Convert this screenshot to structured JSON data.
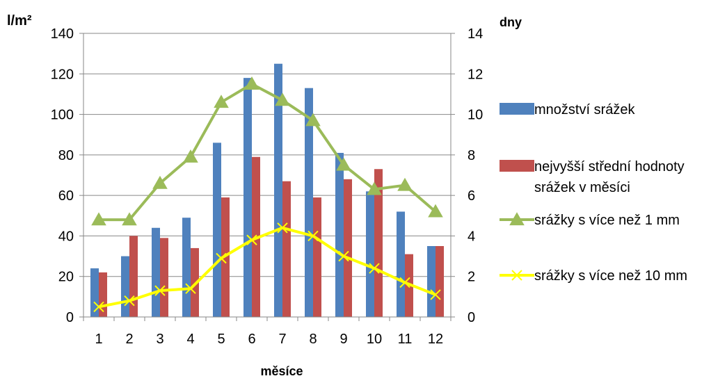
{
  "chart_data": {
    "type": "bar",
    "title": "",
    "xlabel": "měsíce",
    "ylabel_left": "l/m²",
    "ylabel_right": "dny",
    "categories": [
      "1",
      "2",
      "3",
      "4",
      "5",
      "6",
      "7",
      "8",
      "9",
      "10",
      "11",
      "12"
    ],
    "ylim_left": [
      0,
      140
    ],
    "ylim_right": [
      0,
      14
    ],
    "yticks_left": [
      "0",
      "20",
      "40",
      "60",
      "80",
      "100",
      "120",
      "140"
    ],
    "yticks_right": [
      "0",
      "2",
      "4",
      "6",
      "8",
      "10",
      "12",
      "14"
    ],
    "grid": true,
    "legend_position": "right",
    "series": [
      {
        "name": "množství srážek",
        "kind": "bar",
        "axis": "left",
        "color": "#4f81bd",
        "values": [
          24,
          30,
          44,
          49,
          86,
          118,
          125,
          113,
          81,
          62,
          52,
          35
        ]
      },
      {
        "name": "nejvyšší střední hodnoty srážek v měsíci",
        "kind": "bar",
        "axis": "left",
        "color": "#c0504d",
        "values": [
          22,
          40,
          39,
          34,
          59,
          79,
          67,
          59,
          68,
          73,
          31,
          35
        ]
      },
      {
        "name": "srážky s více než 1 mm",
        "kind": "line",
        "axis": "right",
        "color": "#9bbb59",
        "marker": "triangle",
        "values": [
          4.8,
          4.8,
          6.6,
          7.9,
          10.6,
          11.5,
          10.7,
          9.7,
          7.5,
          6.3,
          6.5,
          5.2
        ]
      },
      {
        "name": "srážky s více než 10 mm",
        "kind": "line",
        "axis": "right",
        "color": "#ffff00",
        "marker": "x",
        "values": [
          0.5,
          0.8,
          1.3,
          1.4,
          2.9,
          3.8,
          4.4,
          4.0,
          3.0,
          2.4,
          1.7,
          1.1
        ]
      }
    ]
  }
}
